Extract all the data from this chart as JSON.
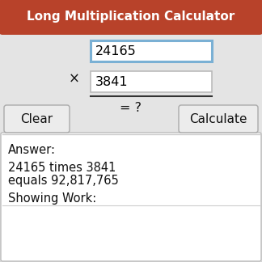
{
  "title": "Long Multiplication Calculator",
  "title_bg_color": "#b8422a",
  "title_text_color": "#ffffff",
  "bg_color": "#e4e4e4",
  "num1": "24165",
  "num2": "3841",
  "multiply_symbol": "×",
  "result_text": "= ?",
  "input1_border_color": "#7ab0d4",
  "input2_border_color": "#bbbbbb",
  "button_bg": "#ececec",
  "button_border": "#aaaaaa",
  "clear_label": "Clear",
  "calculate_label": "Calculate",
  "answer_box_bg": "#ffffff",
  "answer_box_border": "#bbbbbb",
  "answer_line1": "Answer:",
  "answer_line2": "24165 times 3841",
  "answer_line3": "equals 92,817,765",
  "answer_line4": "Showing Work:",
  "outer_border_color": "#cccccc",
  "line_color": "#333333",
  "figsize": [
    3.24,
    3.24
  ],
  "dpi": 100
}
